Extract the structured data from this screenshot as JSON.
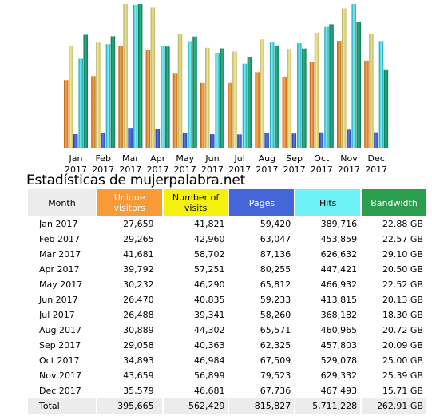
{
  "colors": {
    "unique": "#f79a37",
    "visits": "#f5f00e",
    "pages": "#4566d9",
    "hits": "#6ef2f7",
    "bandwidth": "#2b9e4e"
  },
  "title": "Estadísticas de mujerpalabra.net",
  "table": {
    "headers": {
      "month": "Month",
      "unique": "Unique visitors",
      "visits": "Number of visits",
      "pages": "Pages",
      "hits": "Hits",
      "bandwidth": "Bandwidth"
    },
    "rows": [
      {
        "month": "Jan 2017",
        "unique": "27,659",
        "visits": "41,821",
        "pages": "59,420",
        "hits": "389,716",
        "bandwidth": "22.88 GB"
      },
      {
        "month": "Feb 2017",
        "unique": "29,265",
        "visits": "42,960",
        "pages": "63,047",
        "hits": "453,859",
        "bandwidth": "22.57 GB"
      },
      {
        "month": "Mar 2017",
        "unique": "41,681",
        "visits": "58,702",
        "pages": "87,136",
        "hits": "626,632",
        "bandwidth": "29.10 GB"
      },
      {
        "month": "Apr 2017",
        "unique": "39,792",
        "visits": "57,251",
        "pages": "80,255",
        "hits": "447,421",
        "bandwidth": "20.50 GB"
      },
      {
        "month": "May 2017",
        "unique": "30,232",
        "visits": "46,290",
        "pages": "65,812",
        "hits": "466,932",
        "bandwidth": "22.52 GB"
      },
      {
        "month": "Jun 2017",
        "unique": "26,470",
        "visits": "40,835",
        "pages": "59,233",
        "hits": "413,815",
        "bandwidth": "20.13 GB"
      },
      {
        "month": "Jul 2017",
        "unique": "26,488",
        "visits": "39,341",
        "pages": "58,260",
        "hits": "368,182",
        "bandwidth": "18.30 GB"
      },
      {
        "month": "Aug 2017",
        "unique": "30,889",
        "visits": "44,302",
        "pages": "65,571",
        "hits": "460,965",
        "bandwidth": "20.72 GB"
      },
      {
        "month": "Sep 2017",
        "unique": "29,058",
        "visits": "40,363",
        "pages": "62,325",
        "hits": "457,803",
        "bandwidth": "20.09 GB"
      },
      {
        "month": "Oct 2017",
        "unique": "34,893",
        "visits": "46,984",
        "pages": "67,509",
        "hits": "529,078",
        "bandwidth": "25.00 GB"
      },
      {
        "month": "Nov 2017",
        "unique": "43,659",
        "visits": "56,899",
        "pages": "79,523",
        "hits": "629,332",
        "bandwidth": "25.39 GB"
      },
      {
        "month": "Dec 2017",
        "unique": "35,579",
        "visits": "46,681",
        "pages": "67,736",
        "hits": "467,493",
        "bandwidth": "15.71 GB"
      }
    ],
    "total": {
      "month": "Total",
      "unique": "395,665",
      "visits": "562,429",
      "pages": "815,827",
      "hits": "5,711,228",
      "bandwidth": "262.91 GB"
    }
  },
  "chart_data": {
    "type": "bar",
    "categories": [
      [
        "Jan",
        "2017"
      ],
      [
        "Feb",
        "2017"
      ],
      [
        "Mar",
        "2017"
      ],
      [
        "Apr",
        "2017"
      ],
      [
        "May",
        "2017"
      ],
      [
        "Jun",
        "2017"
      ],
      [
        "Jul",
        "2017"
      ],
      [
        "Aug",
        "2017"
      ],
      [
        "Sep",
        "2017"
      ],
      [
        "Oct",
        "2017"
      ],
      [
        "Nov",
        "2017"
      ],
      [
        "Dec",
        "2017"
      ]
    ],
    "series": [
      {
        "key": "unique",
        "values": [
          27659,
          29265,
          41681,
          39792,
          30232,
          26470,
          26488,
          30889,
          29058,
          34893,
          43659,
          35579
        ]
      },
      {
        "key": "visits",
        "values": [
          41821,
          42960,
          58702,
          57251,
          46290,
          40835,
          39341,
          44302,
          40363,
          46984,
          56899,
          46681
        ]
      },
      {
        "key": "pages",
        "values": [
          59420,
          63047,
          87136,
          80255,
          65812,
          59233,
          58260,
          65571,
          62325,
          67509,
          79523,
          67736
        ]
      },
      {
        "key": "hits",
        "values": [
          389716,
          453859,
          626632,
          447421,
          466932,
          413815,
          368182,
          460965,
          457803,
          529078,
          629332,
          467493
        ]
      },
      {
        "key": "bandwidth",
        "values": [
          22.88,
          22.57,
          29.1,
          20.5,
          22.52,
          20.13,
          18.3,
          20.72,
          20.09,
          25.0,
          25.39,
          15.71
        ]
      }
    ],
    "scales": {
      "visits_max": 58702,
      "pages_max": 629332,
      "bandwidth_max": 29.1
    },
    "legend": "none",
    "grid": false
  }
}
